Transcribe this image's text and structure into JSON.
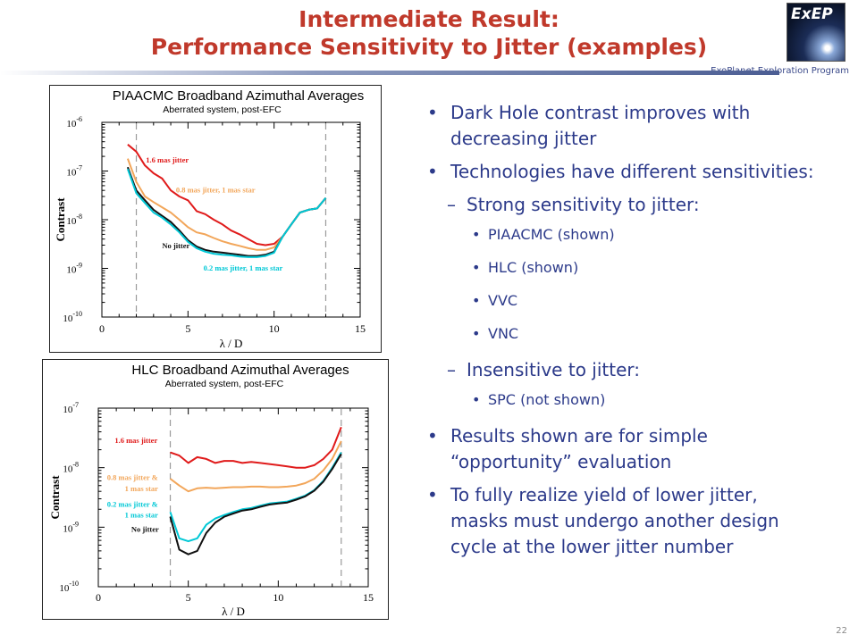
{
  "slide": {
    "title_line1": "Intermediate Result:",
    "title_line2": "Performance Sensitivity to Jitter (examples)",
    "logo_text": "ExEP",
    "program": "ExoPlanet Exploration Program",
    "page_number": "22",
    "colors": {
      "title": "#c0392b",
      "bullet_text": "#2c3a8a"
    }
  },
  "bullets": [
    {
      "level": 1,
      "text": "Dark Hole contrast improves with decreasing jitter"
    },
    {
      "level": 1,
      "text": "Technologies have different sensitivities:"
    },
    {
      "level": 2,
      "text": "Strong sensitivity to jitter:"
    },
    {
      "level": 3,
      "text": "PIAACMC (shown)"
    },
    {
      "level": 3,
      "text": "HLC (shown)"
    },
    {
      "level": 3,
      "text": "VVC"
    },
    {
      "level": 3,
      "text": "VNC"
    },
    {
      "level": 2,
      "text": "Insensitive to jitter:"
    },
    {
      "level": 3,
      "text": "SPC (not shown)"
    },
    {
      "level": 1,
      "text": "Results shown are for simple “opportunity” evaluation"
    },
    {
      "level": 1,
      "text": "To fully realize yield of lower jitter, masks must undergo another design cycle at the lower jitter number"
    }
  ],
  "chart_data": [
    {
      "type": "line",
      "title": "PIAACMC Broadband Azimuthal Averages",
      "subtitle": "Aberrated system, post-EFC",
      "xlabel": "λ / D",
      "ylabel": "Contrast",
      "xlim": [
        0,
        15
      ],
      "ylim_log10": [
        -10,
        -6
      ],
      "y_scale": "log",
      "x_ticks": [
        "0",
        "5",
        "10",
        "15"
      ],
      "y_ticks": [
        {
          "base": "10",
          "exp": "-6"
        },
        {
          "base": "10",
          "exp": "-7"
        },
        {
          "base": "10",
          "exp": "-8"
        },
        {
          "base": "10",
          "exp": "-9"
        },
        {
          "base": "10",
          "exp": "-10"
        }
      ],
      "vlines": [
        2,
        13
      ],
      "series": [
        {
          "name": "1.6 mas jitter",
          "color": "#e01b1b",
          "x": [
            1.5,
            2.0,
            2.5,
            3.0,
            3.5,
            4.0,
            4.5,
            5.0,
            5.5,
            6.0,
            6.5,
            7.0,
            7.5,
            8.0,
            8.5,
            9.0,
            9.5,
            10.0,
            10.5,
            11.0,
            11.5,
            12.0,
            12.5,
            13.0
          ],
          "y": [
            3.5e-07,
            2.5e-07,
            1.3e-07,
            9e-08,
            7e-08,
            4e-08,
            3e-08,
            2.5e-08,
            1.5e-08,
            1.3e-08,
            1e-08,
            8e-09,
            6e-09,
            5e-09,
            4e-09,
            3.2e-09,
            3e-09,
            3.2e-09,
            4.5e-09,
            8e-09,
            1.4e-08,
            1.6e-08,
            1.7e-08,
            2.8e-08
          ]
        },
        {
          "name": "0.8 mas jitter, 1 mas star",
          "color": "#f2a65a",
          "x": [
            1.5,
            2.0,
            2.5,
            3.0,
            3.5,
            4.0,
            4.5,
            5.0,
            5.5,
            6.0,
            6.5,
            7.0,
            7.5,
            8.0,
            8.5,
            9.0,
            9.5,
            10.0,
            10.5,
            11.0,
            11.5,
            12.0,
            12.5,
            13.0
          ],
          "y": [
            1.8e-07,
            6e-08,
            3e-08,
            2.3e-08,
            1.8e-08,
            1.4e-08,
            1e-08,
            7e-09,
            5.5e-09,
            5e-09,
            4.2e-09,
            3.6e-09,
            3.2e-09,
            2.9e-09,
            2.6e-09,
            2.4e-09,
            2.4e-09,
            2.7e-09,
            4.5e-09,
            8e-09,
            1.4e-08,
            1.6e-08,
            1.7e-08,
            2.8e-08
          ]
        },
        {
          "name": "No jitter",
          "color": "#111111",
          "x": [
            1.5,
            2.0,
            2.5,
            3.0,
            3.5,
            4.0,
            4.5,
            5.0,
            5.5,
            6.0,
            6.5,
            7.0,
            7.5,
            8.0,
            8.5,
            9.0,
            9.5,
            10.0,
            10.5,
            11.0,
            11.5,
            12.0,
            12.5,
            13.0
          ],
          "y": [
            1.2e-07,
            4e-08,
            2.5e-08,
            1.6e-08,
            1.2e-08,
            9e-09,
            6e-09,
            3.8e-09,
            2.8e-09,
            2.4e-09,
            2.2e-09,
            2.1e-09,
            2e-09,
            1.9e-09,
            1.8e-09,
            1.8e-09,
            1.9e-09,
            2.2e-09,
            4.5e-09,
            8e-09,
            1.4e-08,
            1.6e-08,
            1.7e-08,
            2.8e-08
          ]
        },
        {
          "name": "0.2 mas jitter, 1 mas star",
          "color": "#00c8d6",
          "x": [
            1.5,
            2.0,
            2.5,
            3.0,
            3.5,
            4.0,
            4.5,
            5.0,
            5.5,
            6.0,
            6.5,
            7.0,
            7.5,
            8.0,
            8.5,
            9.0,
            9.5,
            10.0,
            10.5,
            11.0,
            11.5,
            12.0,
            12.5,
            13.0
          ],
          "y": [
            1.1e-07,
            3.5e-08,
            2.2e-08,
            1.4e-08,
            1.1e-08,
            8e-09,
            5.5e-09,
            3.5e-09,
            2.6e-09,
            2.2e-09,
            2e-09,
            1.9e-09,
            1.85e-09,
            1.75e-09,
            1.7e-09,
            1.7e-09,
            1.8e-09,
            2.1e-09,
            4.5e-09,
            8e-09,
            1.4e-08,
            1.6e-08,
            1.7e-08,
            2.8e-08
          ]
        }
      ],
      "annotations": [
        {
          "text": "1.6 mas jitter",
          "color": "#e01b1b",
          "x": 3.8,
          "y": 1.5e-07
        },
        {
          "text": "0.8 mas jitter, 1 mas star",
          "color": "#f2a65a",
          "x": 6.6,
          "y": 3.6e-08
        },
        {
          "text": "No jitter",
          "color": "#111111",
          "x": 4.3,
          "y": 2.6e-09
        },
        {
          "text": "0.2 mas jitter, 1 mas star",
          "color": "#00c8d6",
          "x": 8.2,
          "y": 9e-10
        }
      ]
    },
    {
      "type": "line",
      "title": "HLC Broadband Azimuthal Averages",
      "subtitle": "Aberrated system, post-EFC",
      "xlabel": "λ / D",
      "ylabel": "Contrast",
      "xlim": [
        0,
        15
      ],
      "ylim_log10": [
        -10,
        -7
      ],
      "y_scale": "log",
      "x_ticks": [
        "0",
        "5",
        "10",
        "15"
      ],
      "y_ticks": [
        {
          "base": "10",
          "exp": "-7"
        },
        {
          "base": "10",
          "exp": "-8"
        },
        {
          "base": "10",
          "exp": "-9"
        },
        {
          "base": "10",
          "exp": "-10"
        }
      ],
      "vlines": [
        4,
        13.5
      ],
      "series": [
        {
          "name": "1.6 mas jitter",
          "color": "#e01b1b",
          "x": [
            4.0,
            4.5,
            5.0,
            5.5,
            6.0,
            6.5,
            7.0,
            7.5,
            8.0,
            8.5,
            9.0,
            9.5,
            10.0,
            10.5,
            11.0,
            11.5,
            12.0,
            12.5,
            13.0,
            13.5
          ],
          "y": [
            1.8e-08,
            1.6e-08,
            1.2e-08,
            1.5e-08,
            1.4e-08,
            1.2e-08,
            1.3e-08,
            1.3e-08,
            1.2e-08,
            1.25e-08,
            1.2e-08,
            1.15e-08,
            1.1e-08,
            1.05e-08,
            1e-08,
            1e-08,
            1.1e-08,
            1.4e-08,
            2e-08,
            4.8e-08
          ]
        },
        {
          "name": "0.8 mas jitter & 1 mas star",
          "color": "#f2a65a",
          "x": [
            4.0,
            4.5,
            5.0,
            5.5,
            6.0,
            6.5,
            7.0,
            7.5,
            8.0,
            8.5,
            9.0,
            9.5,
            10.0,
            10.5,
            11.0,
            11.5,
            12.0,
            12.5,
            13.0,
            13.5
          ],
          "y": [
            6.5e-09,
            5e-09,
            4e-09,
            4.5e-09,
            4.6e-09,
            4.5e-09,
            4.6e-09,
            4.7e-09,
            4.7e-09,
            4.8e-09,
            4.8e-09,
            4.7e-09,
            4.7e-09,
            4.8e-09,
            5e-09,
            5.5e-09,
            6.5e-09,
            9e-09,
            1.4e-08,
            2.8e-08
          ]
        },
        {
          "name": "0.2 mas jitter & 1 mas star",
          "color": "#00c8d6",
          "x": [
            4.0,
            4.5,
            5.0,
            5.5,
            6.0,
            6.5,
            7.0,
            7.5,
            8.0,
            8.5,
            9.0,
            9.5,
            10.0,
            10.5,
            11.0,
            11.5,
            12.0,
            12.5,
            13.0,
            13.5
          ],
          "y": [
            1.8e-09,
            6.5e-10,
            5.8e-10,
            6.5e-10,
            1.1e-09,
            1.4e-09,
            1.6e-09,
            1.8e-09,
            2e-09,
            2.1e-09,
            2.3e-09,
            2.5e-09,
            2.6e-09,
            2.7e-09,
            3e-09,
            3.4e-09,
            4.2e-09,
            6e-09,
            1e-08,
            1.8e-08
          ]
        },
        {
          "name": "No jitter",
          "color": "#111111",
          "x": [
            4.0,
            4.5,
            5.0,
            5.5,
            6.0,
            6.5,
            7.0,
            7.5,
            8.0,
            8.5,
            9.0,
            9.5,
            10.0,
            10.5,
            11.0,
            11.5,
            12.0,
            12.5,
            13.0,
            13.5
          ],
          "y": [
            1.5e-09,
            4.2e-10,
            3.5e-10,
            4e-10,
            8e-10,
            1.2e-09,
            1.5e-09,
            1.7e-09,
            1.9e-09,
            2e-09,
            2.2e-09,
            2.4e-09,
            2.5e-09,
            2.6e-09,
            2.9e-09,
            3.3e-09,
            4.1e-09,
            5.8e-09,
            9.5e-09,
            1.7e-08
          ]
        }
      ],
      "annotations": [
        {
          "text": "1.6 mas jitter",
          "color": "#e01b1b",
          "x": 2.1,
          "y": 2.6e-08
        },
        {
          "text": "0.8 mas jitter &",
          "color": "#f2a65a",
          "x": 1.9,
          "y": 6.2e-09
        },
        {
          "text": "1 mas star",
          "color": "#f2a65a",
          "x": 2.4,
          "y": 4e-09
        },
        {
          "text": "0.2 mas jitter &",
          "color": "#00c8d6",
          "x": 1.9,
          "y": 2.2e-09
        },
        {
          "text": "1 mas star",
          "color": "#00c8d6",
          "x": 2.4,
          "y": 1.45e-09
        },
        {
          "text": "No jitter",
          "color": "#111111",
          "x": 2.6,
          "y": 8.4e-10
        }
      ]
    }
  ]
}
